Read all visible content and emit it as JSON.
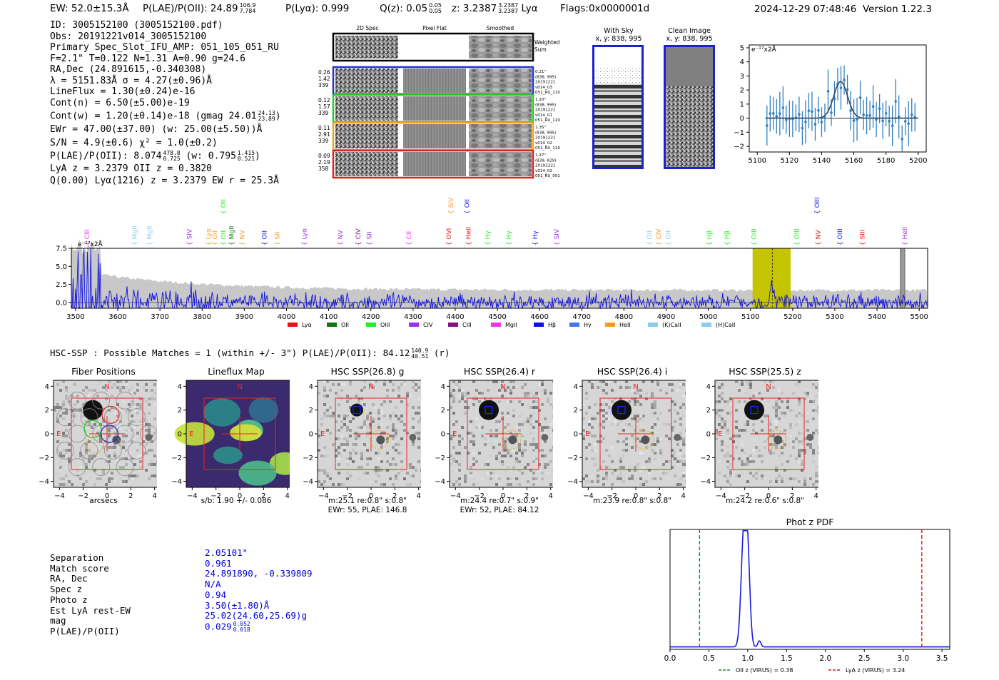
{
  "header": {
    "ew": "EW: 52.0±15.3Å",
    "plae_label": "P(LAE)/P(OII): 24.89",
    "plae_hi": "106.9",
    "plae_lo": "7.784",
    "plya": "P(Lyα): 0.999",
    "qz": "Q(z): 0.05",
    "qz_hi": "0.05",
    "qz_lo": "0.05",
    "z": "z: 3.2387",
    "z_hi": "3.2387",
    "z_lo": "3.2387",
    "z_line": "Lyα",
    "flags": "Flags:0x0000001d",
    "datetime": "2024-12-29 07:48:46",
    "version": "Version 1.22.3"
  },
  "info": {
    "id": "ID: 3005152100 (3005152100.pdf)",
    "obs": "Obs: 20191221v014_3005152100",
    "primary": "Primary Spec_Slot_IFU_AMP: 051_105_051_RU",
    "fwhm": "F=2.1\"  T=0.122  N=1.31  A=0.90  g=24.6",
    "radec": "RA,Dec (24.891615,-0.340308)",
    "lambda": "λ = 5151.83Å  σ = 4.27(±0.96)Å",
    "lineflux": "LineFlux = 1.30(±0.24)e-16",
    "contn": "Cont(n) = 6.50(±5.00)e-19",
    "contw": "Cont(w) = 1.20(±0.14)e-18 (gmag 24.01",
    "contw_hi": "24.13",
    "contw_lo": "23.89",
    "contw_end": ")",
    "ewr": "EWr = 47.00(±37.00) (w: 25.00(±5.50))Å",
    "sn": "S/N = 4.9(±0.6)  χ² = 1.0(±0.2)",
    "plae": "P(LAE)/P(OII): 8.074",
    "plae_hi": "478.8",
    "plae_lo": "0.725",
    "plae_w": "(w: 0.795",
    "plae_w_hi": "1.415",
    "plae_w_lo": "0.521",
    "plae_w_end": ")",
    "lyaz": "LyA z = 3.2379  OII z = 0.3820",
    "q": "Q(0.00) Lyα(1216) z = 3.2379  EW r = 25.3Å"
  },
  "spec2d": {
    "col_titles": [
      "2D Spec",
      "Pixel Flat",
      "Smoothed"
    ],
    "weighted_label_1": "Weighted",
    "weighted_label_2": "Sum",
    "rows": [
      {
        "left": [
          "0.26",
          "1.42",
          "339"
        ],
        "right": [
          "0.21\"",
          "(838, 995)",
          "20191221",
          "v014_03",
          "051_RU_110"
        ],
        "color": "#2233cc"
      },
      {
        "left": [
          "0.12",
          "1.57",
          "339"
        ],
        "right": [
          "1.20\"",
          "(838, 995)",
          "20191221",
          "v014_01",
          "051_RU_110"
        ],
        "color": "#22cc22"
      },
      {
        "left": [
          "0.11",
          "2.91",
          "339"
        ],
        "right": [
          "1.35\"",
          "(838, 995)",
          "20191221",
          "v014_02",
          "051_RU_110"
        ],
        "color": "#f0a020"
      },
      {
        "left": [
          "0.09",
          "2.19",
          "358"
        ],
        "right": [
          "1.37\"",
          "(839, 829)",
          "20191221",
          "v014_02",
          "051_RU_091"
        ],
        "color": "#dd2222"
      }
    ]
  },
  "cutouts": {
    "with_sky_title": "With Sky",
    "with_sky_coords": "x, y: 838, 995",
    "clean_title": "Clean Image",
    "clean_coords": "x, y: 838, 995"
  },
  "chart_data": [
    {
      "type": "line",
      "name": "line-fit-zoom",
      "ylabel_text": "e⁻¹⁷x2Å",
      "xlim": [
        5095,
        5205
      ],
      "ylim": [
        -2.4,
        5.2
      ],
      "xticks": [
        5100,
        5120,
        5140,
        5160,
        5180,
        5200
      ],
      "yticks": [
        -2,
        -1,
        0,
        1,
        2,
        3,
        4,
        5
      ],
      "gauss": {
        "center": 5151.8,
        "sigma": 4.27,
        "amp": 2.6
      }
    },
    {
      "type": "line",
      "name": "full-spectrum",
      "ylabel_text": "e⁻¹⁷x2Å",
      "xlim": [
        3490,
        5520
      ],
      "ylim": [
        -0.8,
        7.5
      ],
      "xticks": [
        3500,
        3600,
        3700,
        3800,
        3900,
        4000,
        4100,
        4200,
        4300,
        4400,
        4500,
        4600,
        4700,
        4800,
        4900,
        5000,
        5100,
        5200,
        5300,
        5400,
        5500
      ],
      "yticks": [
        0.0,
        2.5,
        5.0,
        7.5
      ],
      "ytick_labels": [
        "0.0",
        "2.5",
        "5.0",
        "7.5"
      ],
      "highlight": [
        5105,
        5195
      ],
      "line_center": 5151.8,
      "legend": [
        {
          "label": "Lyα",
          "color": "#ee1111"
        },
        {
          "label": "OII",
          "color": "#117711"
        },
        {
          "label": "OIII",
          "color": "#22ee22"
        },
        {
          "label": "CIV",
          "color": "#9933ee"
        },
        {
          "label": "CIII",
          "color": "#881188"
        },
        {
          "label": "MgII",
          "color": "#ee33ee"
        },
        {
          "label": "Hβ",
          "color": "#1111ee"
        },
        {
          "label": "Hγ",
          "color": "#4477ee"
        },
        {
          "label": "HeII",
          "color": "#ff9922"
        },
        {
          "label": "(K)CaII",
          "color": "#88ccee"
        },
        {
          "label": "(H)CaII",
          "color": "#88ccee"
        }
      ],
      "lines_top": [
        {
          "w": 3527,
          "label": "CIII",
          "color": "#ee33ee"
        },
        {
          "w": 3640,
          "label": "MgII",
          "color": "#88ccee"
        },
        {
          "w": 3675,
          "label": "MgII",
          "color": "#88ccee"
        },
        {
          "w": 3770,
          "label": "SIV",
          "color": "#9933ee"
        },
        {
          "w": 3815,
          "label": "Lyα",
          "color": "#ff9922"
        },
        {
          "w": 3830,
          "label": "OII",
          "color": "#ff9922"
        },
        {
          "w": 3850,
          "label": "OII",
          "color": "#22ee22"
        },
        {
          "w": 3870,
          "label": "MgII",
          "color": "#117711"
        },
        {
          "w": 3895,
          "label": "NV",
          "color": "#ff9922"
        },
        {
          "w": 3948,
          "label": "OII",
          "color": "#1111ee"
        },
        {
          "w": 3978,
          "label": "SII",
          "color": "#ff9922"
        },
        {
          "w": 4042,
          "label": "Lyα",
          "color": "#9933ee"
        },
        {
          "w": 4128,
          "label": "NV",
          "color": "#9933ee"
        },
        {
          "w": 4170,
          "label": "CIV",
          "color": "#881188"
        },
        {
          "w": 4196,
          "label": "SII",
          "color": "#9933ee"
        },
        {
          "w": 4290,
          "label": "CII",
          "color": "#ee33ee"
        },
        {
          "w": 4385,
          "label": "OVI",
          "color": "#ee1111"
        },
        {
          "w": 4431,
          "label": "HeII",
          "color": "#ee1111"
        },
        {
          "w": 4477,
          "label": "Hγ",
          "color": "#22ee22"
        },
        {
          "w": 4527,
          "label": "Hγ",
          "color": "#22ee22"
        },
        {
          "w": 4590,
          "label": "Hγ",
          "color": "#1111ee"
        },
        {
          "w": 4640,
          "label": "SIV",
          "color": "#9933ee"
        },
        {
          "w": 4860,
          "label": "OII",
          "color": "#88ccee"
        },
        {
          "w": 4882,
          "label": "CIV",
          "color": "#ff9922"
        },
        {
          "w": 4905,
          "label": "OII",
          "color": "#88ccee"
        },
        {
          "w": 5002,
          "label": "Hβ",
          "color": "#22ee22"
        },
        {
          "w": 5045,
          "label": "Hβ",
          "color": "#22ee22"
        },
        {
          "w": 5108,
          "label": "OIII",
          "color": "#22ee22"
        },
        {
          "w": 5210,
          "label": "OIII",
          "color": "#22ee22"
        },
        {
          "w": 5260,
          "label": "NV",
          "color": "#ee1111"
        },
        {
          "w": 5312,
          "label": "OIII",
          "color": "#1111ee"
        },
        {
          "w": 5365,
          "label": "SIII",
          "color": "#ee1111"
        },
        {
          "w": 5466,
          "label": "HeII",
          "color": "#9933ee"
        }
      ],
      "lines_high": [
        {
          "w": 3850,
          "label": "OII",
          "color": "#22ee22"
        },
        {
          "w": 4390,
          "label": "SIV",
          "color": "#ff9922"
        },
        {
          "w": 4428,
          "label": "OII",
          "color": "#1111ee"
        },
        {
          "w": 5258,
          "label": "OIII",
          "color": "#1111ee"
        }
      ]
    },
    {
      "type": "line",
      "name": "photz-pdf",
      "title": "Phot z PDF",
      "xlim": [
        0.0,
        3.6
      ],
      "ylim": [
        0,
        1.0
      ],
      "xticks": [
        0.0,
        0.5,
        1.0,
        1.5,
        2.0,
        2.5,
        3.0,
        3.5
      ],
      "xtick_labels": [
        "0.0",
        "0.5",
        "1.0",
        "1.5",
        "2.0",
        "2.5",
        "3.0",
        "3.5"
      ],
      "oii_z": 0.38,
      "lya_z": 3.24,
      "legend_oii": "OII z (VIRUS) = 0.38",
      "legend_lya": "LyA z (VIRUS) = 3.24"
    }
  ],
  "hsc": {
    "header": "HSC-SSP : Possible Matches = 1 (within +/- 3\")  P(LAE)/P(OII): 84.12",
    "header_hi": "140.9",
    "header_lo": "40.51",
    "header_end": "(r)",
    "panels": [
      {
        "title": "Fiber Positions",
        "caption1": "arcsecs",
        "caption2": "",
        "kind": "fiber"
      },
      {
        "title": "Lineflux Map",
        "caption1": "s/b: 1.90 +/- 0.086",
        "caption2": "",
        "kind": "lineflux"
      },
      {
        "title": "HSC SSP(26.8) g",
        "caption1": "m:25.1  re:0.8\"  s:0.8\"",
        "caption2": "EWr: 55, PLAE: 146.8",
        "kind": "hsc"
      },
      {
        "title": "HSC SSP(26.4) r",
        "caption1": "m:24.4  re:0.7\"  s:0.9\"",
        "caption2": "EWr: 52, PLAE: 84.12",
        "kind": "hsc"
      },
      {
        "title": "HSC SSP(26.4) i",
        "caption1": "m:23.9  re:0.8\"  s:0.8\"",
        "caption2": "",
        "kind": "hsc"
      },
      {
        "title": "HSC SSP(25.5) z",
        "caption1": "m:24.2  re:0.6\"  s:0.8\"",
        "caption2": "",
        "kind": "hsc"
      }
    ],
    "tick_labels": [
      "−4",
      "−2",
      "0",
      "2",
      "4"
    ],
    "n_label": "N",
    "e_label": "E"
  },
  "match": {
    "labels": [
      "Separation",
      "Match score",
      "RA, Dec",
      "Spec z",
      "Photo z",
      "Est LyA rest-EW",
      "mag",
      "P(LAE)/P(OII)"
    ],
    "values": [
      "2.05101\"",
      "0.961",
      "24.891890, -0.339809",
      "N/A",
      "0.94",
      "3.50(±1.80)Å",
      "25.02(24.60,25.69)g",
      "0.029"
    ],
    "plae_hi": "0.052",
    "plae_lo": "0.018"
  }
}
